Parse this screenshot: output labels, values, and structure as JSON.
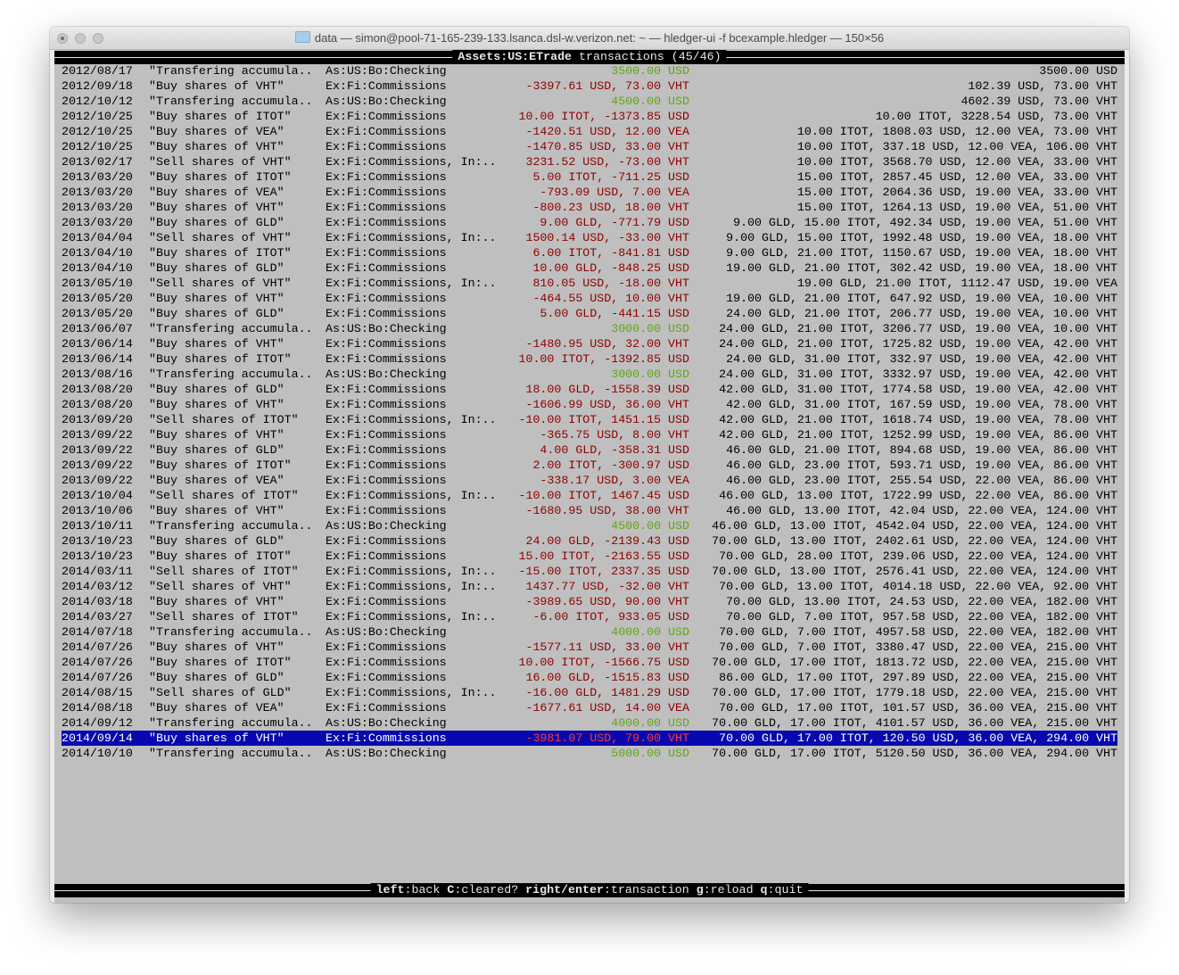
{
  "window": {
    "title": "data — simon@pool-71-165-239-133.lsanca.dsl-w.verizon.net: ~ — hledger-ui -f bcexample.hledger — 150×56"
  },
  "header": {
    "account": "Assets:US:ETrade",
    "label": "transactions",
    "position": "(45/46)"
  },
  "footer": {
    "keys": [
      {
        "key": "left",
        "action": "back"
      },
      {
        "key": "C",
        "action": "cleared?"
      },
      {
        "key": "right/enter",
        "action": "transaction"
      },
      {
        "key": "g",
        "action": "reload"
      },
      {
        "key": "q",
        "action": "quit"
      }
    ]
  },
  "colors": {
    "background": "#bfbfbf",
    "negative": "#8e0000",
    "positive": "#5fa812",
    "selection": "#0808b0"
  },
  "selected_index": 44,
  "rows": [
    {
      "date": "2012/08/17",
      "desc": "\"Transfering accumula..",
      "account": "As:US:Bo:Checking",
      "amount": "3500.00 USD",
      "sign": "green",
      "balance": "3500.00 USD"
    },
    {
      "date": "2012/09/18",
      "desc": "\"Buy shares of VHT\"",
      "account": "Ex:Fi:Commissions",
      "amount": "-3397.61 USD, 73.00 VHT",
      "sign": "red",
      "balance": "102.39 USD, 73.00 VHT"
    },
    {
      "date": "2012/10/12",
      "desc": "\"Transfering accumula..",
      "account": "As:US:Bo:Checking",
      "amount": "4500.00 USD",
      "sign": "green",
      "balance": "4602.39 USD, 73.00 VHT"
    },
    {
      "date": "2012/10/25",
      "desc": "\"Buy shares of ITOT\"",
      "account": "Ex:Fi:Commissions",
      "amount": "10.00 ITOT, -1373.85 USD",
      "sign": "red",
      "balance": "10.00 ITOT, 3228.54 USD, 73.00 VHT"
    },
    {
      "date": "2012/10/25",
      "desc": "\"Buy shares of VEA\"",
      "account": "Ex:Fi:Commissions",
      "amount": "-1420.51 USD, 12.00 VEA",
      "sign": "red",
      "balance": "10.00 ITOT, 1808.03 USD, 12.00 VEA, 73.00 VHT"
    },
    {
      "date": "2012/10/25",
      "desc": "\"Buy shares of VHT\"",
      "account": "Ex:Fi:Commissions",
      "amount": "-1470.85 USD, 33.00 VHT",
      "sign": "red",
      "balance": "10.00 ITOT, 337.18 USD, 12.00 VEA, 106.00 VHT"
    },
    {
      "date": "2013/02/17",
      "desc": "\"Sell shares of VHT\"",
      "account": "Ex:Fi:Commissions, In:..",
      "amount": "3231.52 USD, -73.00 VHT",
      "sign": "red",
      "balance": "10.00 ITOT, 3568.70 USD, 12.00 VEA, 33.00 VHT"
    },
    {
      "date": "2013/03/20",
      "desc": "\"Buy shares of ITOT\"",
      "account": "Ex:Fi:Commissions",
      "amount": "5.00 ITOT, -711.25 USD",
      "sign": "red",
      "balance": "15.00 ITOT, 2857.45 USD, 12.00 VEA, 33.00 VHT"
    },
    {
      "date": "2013/03/20",
      "desc": "\"Buy shares of VEA\"",
      "account": "Ex:Fi:Commissions",
      "amount": "-793.09 USD, 7.00 VEA",
      "sign": "red",
      "balance": "15.00 ITOT, 2064.36 USD, 19.00 VEA, 33.00 VHT"
    },
    {
      "date": "2013/03/20",
      "desc": "\"Buy shares of VHT\"",
      "account": "Ex:Fi:Commissions",
      "amount": "-800.23 USD, 18.00 VHT",
      "sign": "red",
      "balance": "15.00 ITOT, 1264.13 USD, 19.00 VEA, 51.00 VHT"
    },
    {
      "date": "2013/03/20",
      "desc": "\"Buy shares of GLD\"",
      "account": "Ex:Fi:Commissions",
      "amount": "9.00 GLD, -771.79 USD",
      "sign": "red",
      "balance": "9.00 GLD, 15.00 ITOT, 492.34 USD, 19.00 VEA, 51.00 VHT"
    },
    {
      "date": "2013/04/04",
      "desc": "\"Sell shares of VHT\"",
      "account": "Ex:Fi:Commissions, In:..",
      "amount": "1500.14 USD, -33.00 VHT",
      "sign": "red",
      "balance": "9.00 GLD, 15.00 ITOT, 1992.48 USD, 19.00 VEA, 18.00 VHT"
    },
    {
      "date": "2013/04/10",
      "desc": "\"Buy shares of ITOT\"",
      "account": "Ex:Fi:Commissions",
      "amount": "6.00 ITOT, -841.81 USD",
      "sign": "red",
      "balance": "9.00 GLD, 21.00 ITOT, 1150.67 USD, 19.00 VEA, 18.00 VHT"
    },
    {
      "date": "2013/04/10",
      "desc": "\"Buy shares of GLD\"",
      "account": "Ex:Fi:Commissions",
      "amount": "10.00 GLD, -848.25 USD",
      "sign": "red",
      "balance": "19.00 GLD, 21.00 ITOT, 302.42 USD, 19.00 VEA, 18.00 VHT"
    },
    {
      "date": "2013/05/10",
      "desc": "\"Sell shares of VHT\"",
      "account": "Ex:Fi:Commissions, In:..",
      "amount": "810.05 USD, -18.00 VHT",
      "sign": "red",
      "balance": "19.00 GLD, 21.00 ITOT, 1112.47 USD, 19.00 VEA"
    },
    {
      "date": "2013/05/20",
      "desc": "\"Buy shares of VHT\"",
      "account": "Ex:Fi:Commissions",
      "amount": "-464.55 USD, 10.00 VHT",
      "sign": "red",
      "balance": "19.00 GLD, 21.00 ITOT, 647.92 USD, 19.00 VEA, 10.00 VHT"
    },
    {
      "date": "2013/05/20",
      "desc": "\"Buy shares of GLD\"",
      "account": "Ex:Fi:Commissions",
      "amount": "5.00 GLD, -441.15 USD",
      "sign": "red",
      "balance": "24.00 GLD, 21.00 ITOT, 206.77 USD, 19.00 VEA, 10.00 VHT"
    },
    {
      "date": "2013/06/07",
      "desc": "\"Transfering accumula..",
      "account": "As:US:Bo:Checking",
      "amount": "3000.00 USD",
      "sign": "green",
      "balance": "24.00 GLD, 21.00 ITOT, 3206.77 USD, 19.00 VEA, 10.00 VHT"
    },
    {
      "date": "2013/06/14",
      "desc": "\"Buy shares of VHT\"",
      "account": "Ex:Fi:Commissions",
      "amount": "-1480.95 USD, 32.00 VHT",
      "sign": "red",
      "balance": "24.00 GLD, 21.00 ITOT, 1725.82 USD, 19.00 VEA, 42.00 VHT"
    },
    {
      "date": "2013/06/14",
      "desc": "\"Buy shares of ITOT\"",
      "account": "Ex:Fi:Commissions",
      "amount": "10.00 ITOT, -1392.85 USD",
      "sign": "red",
      "balance": "24.00 GLD, 31.00 ITOT, 332.97 USD, 19.00 VEA, 42.00 VHT"
    },
    {
      "date": "2013/08/16",
      "desc": "\"Transfering accumula..",
      "account": "As:US:Bo:Checking",
      "amount": "3000.00 USD",
      "sign": "green",
      "balance": "24.00 GLD, 31.00 ITOT, 3332.97 USD, 19.00 VEA, 42.00 VHT"
    },
    {
      "date": "2013/08/20",
      "desc": "\"Buy shares of GLD\"",
      "account": "Ex:Fi:Commissions",
      "amount": "18.00 GLD, -1558.39 USD",
      "sign": "red",
      "balance": "42.00 GLD, 31.00 ITOT, 1774.58 USD, 19.00 VEA, 42.00 VHT"
    },
    {
      "date": "2013/08/20",
      "desc": "\"Buy shares of VHT\"",
      "account": "Ex:Fi:Commissions",
      "amount": "-1606.99 USD, 36.00 VHT",
      "sign": "red",
      "balance": "42.00 GLD, 31.00 ITOT, 167.59 USD, 19.00 VEA, 78.00 VHT"
    },
    {
      "date": "2013/09/20",
      "desc": "\"Sell shares of ITOT\"",
      "account": "Ex:Fi:Commissions, In:..",
      "amount": "-10.00 ITOT, 1451.15 USD",
      "sign": "red",
      "balance": "42.00 GLD, 21.00 ITOT, 1618.74 USD, 19.00 VEA, 78.00 VHT"
    },
    {
      "date": "2013/09/22",
      "desc": "\"Buy shares of VHT\"",
      "account": "Ex:Fi:Commissions",
      "amount": "-365.75 USD, 8.00 VHT",
      "sign": "red",
      "balance": "42.00 GLD, 21.00 ITOT, 1252.99 USD, 19.00 VEA, 86.00 VHT"
    },
    {
      "date": "2013/09/22",
      "desc": "\"Buy shares of GLD\"",
      "account": "Ex:Fi:Commissions",
      "amount": "4.00 GLD, -358.31 USD",
      "sign": "red",
      "balance": "46.00 GLD, 21.00 ITOT, 894.68 USD, 19.00 VEA, 86.00 VHT"
    },
    {
      "date": "2013/09/22",
      "desc": "\"Buy shares of ITOT\"",
      "account": "Ex:Fi:Commissions",
      "amount": "2.00 ITOT, -300.97 USD",
      "sign": "red",
      "balance": "46.00 GLD, 23.00 ITOT, 593.71 USD, 19.00 VEA, 86.00 VHT"
    },
    {
      "date": "2013/09/22",
      "desc": "\"Buy shares of VEA\"",
      "account": "Ex:Fi:Commissions",
      "amount": "-338.17 USD, 3.00 VEA",
      "sign": "red",
      "balance": "46.00 GLD, 23.00 ITOT, 255.54 USD, 22.00 VEA, 86.00 VHT"
    },
    {
      "date": "2013/10/04",
      "desc": "\"Sell shares of ITOT\"",
      "account": "Ex:Fi:Commissions, In:..",
      "amount": "-10.00 ITOT, 1467.45 USD",
      "sign": "red",
      "balance": "46.00 GLD, 13.00 ITOT, 1722.99 USD, 22.00 VEA, 86.00 VHT"
    },
    {
      "date": "2013/10/06",
      "desc": "\"Buy shares of VHT\"",
      "account": "Ex:Fi:Commissions",
      "amount": "-1680.95 USD, 38.00 VHT",
      "sign": "red",
      "balance": "46.00 GLD, 13.00 ITOT, 42.04 USD, 22.00 VEA, 124.00 VHT"
    },
    {
      "date": "2013/10/11",
      "desc": "\"Transfering accumula..",
      "account": "As:US:Bo:Checking",
      "amount": "4500.00 USD",
      "sign": "green",
      "balance": "46.00 GLD, 13.00 ITOT, 4542.04 USD, 22.00 VEA, 124.00 VHT"
    },
    {
      "date": "2013/10/23",
      "desc": "\"Buy shares of GLD\"",
      "account": "Ex:Fi:Commissions",
      "amount": "24.00 GLD, -2139.43 USD",
      "sign": "red",
      "balance": "70.00 GLD, 13.00 ITOT, 2402.61 USD, 22.00 VEA, 124.00 VHT"
    },
    {
      "date": "2013/10/23",
      "desc": "\"Buy shares of ITOT\"",
      "account": "Ex:Fi:Commissions",
      "amount": "15.00 ITOT, -2163.55 USD",
      "sign": "red",
      "balance": "70.00 GLD, 28.00 ITOT, 239.06 USD, 22.00 VEA, 124.00 VHT"
    },
    {
      "date": "2014/03/11",
      "desc": "\"Sell shares of ITOT\"",
      "account": "Ex:Fi:Commissions, In:..",
      "amount": "-15.00 ITOT, 2337.35 USD",
      "sign": "red",
      "balance": "70.00 GLD, 13.00 ITOT, 2576.41 USD, 22.00 VEA, 124.00 VHT"
    },
    {
      "date": "2014/03/12",
      "desc": "\"Sell shares of VHT\"",
      "account": "Ex:Fi:Commissions, In:..",
      "amount": "1437.77 USD, -32.00 VHT",
      "sign": "red",
      "balance": "70.00 GLD, 13.00 ITOT, 4014.18 USD, 22.00 VEA, 92.00 VHT"
    },
    {
      "date": "2014/03/18",
      "desc": "\"Buy shares of VHT\"",
      "account": "Ex:Fi:Commissions",
      "amount": "-3989.65 USD, 90.00 VHT",
      "sign": "red",
      "balance": "70.00 GLD, 13.00 ITOT, 24.53 USD, 22.00 VEA, 182.00 VHT"
    },
    {
      "date": "2014/03/27",
      "desc": "\"Sell shares of ITOT\"",
      "account": "Ex:Fi:Commissions, In:..",
      "amount": "-6.00 ITOT, 933.05 USD",
      "sign": "red",
      "balance": "70.00 GLD, 7.00 ITOT, 957.58 USD, 22.00 VEA, 182.00 VHT"
    },
    {
      "date": "2014/07/18",
      "desc": "\"Transfering accumula..",
      "account": "As:US:Bo:Checking",
      "amount": "4000.00 USD",
      "sign": "green",
      "balance": "70.00 GLD, 7.00 ITOT, 4957.58 USD, 22.00 VEA, 182.00 VHT"
    },
    {
      "date": "2014/07/26",
      "desc": "\"Buy shares of VHT\"",
      "account": "Ex:Fi:Commissions",
      "amount": "-1577.11 USD, 33.00 VHT",
      "sign": "red",
      "balance": "70.00 GLD, 7.00 ITOT, 3380.47 USD, 22.00 VEA, 215.00 VHT"
    },
    {
      "date": "2014/07/26",
      "desc": "\"Buy shares of ITOT\"",
      "account": "Ex:Fi:Commissions",
      "amount": "10.00 ITOT, -1566.75 USD",
      "sign": "red",
      "balance": "70.00 GLD, 17.00 ITOT, 1813.72 USD, 22.00 VEA, 215.00 VHT"
    },
    {
      "date": "2014/07/26",
      "desc": "\"Buy shares of GLD\"",
      "account": "Ex:Fi:Commissions",
      "amount": "16.00 GLD, -1515.83 USD",
      "sign": "red",
      "balance": "86.00 GLD, 17.00 ITOT, 297.89 USD, 22.00 VEA, 215.00 VHT"
    },
    {
      "date": "2014/08/15",
      "desc": "\"Sell shares of GLD\"",
      "account": "Ex:Fi:Commissions, In:..",
      "amount": "-16.00 GLD, 1481.29 USD",
      "sign": "red",
      "balance": "70.00 GLD, 17.00 ITOT, 1779.18 USD, 22.00 VEA, 215.00 VHT"
    },
    {
      "date": "2014/08/18",
      "desc": "\"Buy shares of VEA\"",
      "account": "Ex:Fi:Commissions",
      "amount": "-1677.61 USD, 14.00 VEA",
      "sign": "red",
      "balance": "70.00 GLD, 17.00 ITOT, 101.57 USD, 36.00 VEA, 215.00 VHT"
    },
    {
      "date": "2014/09/12",
      "desc": "\"Transfering accumula..",
      "account": "As:US:Bo:Checking",
      "amount": "4000.00 USD",
      "sign": "green",
      "balance": "70.00 GLD, 17.00 ITOT, 4101.57 USD, 36.00 VEA, 215.00 VHT"
    },
    {
      "date": "2014/09/14",
      "desc": "\"Buy shares of VHT\"",
      "account": "Ex:Fi:Commissions",
      "amount": "-3981.07 USD, 79.00 VHT",
      "sign": "red",
      "balance": "70.00 GLD, 17.00 ITOT, 120.50 USD, 36.00 VEA, 294.00 VHT"
    },
    {
      "date": "2014/10/10",
      "desc": "\"Transfering accumula..",
      "account": "As:US:Bo:Checking",
      "amount": "5000.00 USD",
      "sign": "green",
      "balance": "70.00 GLD, 17.00 ITOT, 5120.50 USD, 36.00 VEA, 294.00 VHT"
    }
  ]
}
